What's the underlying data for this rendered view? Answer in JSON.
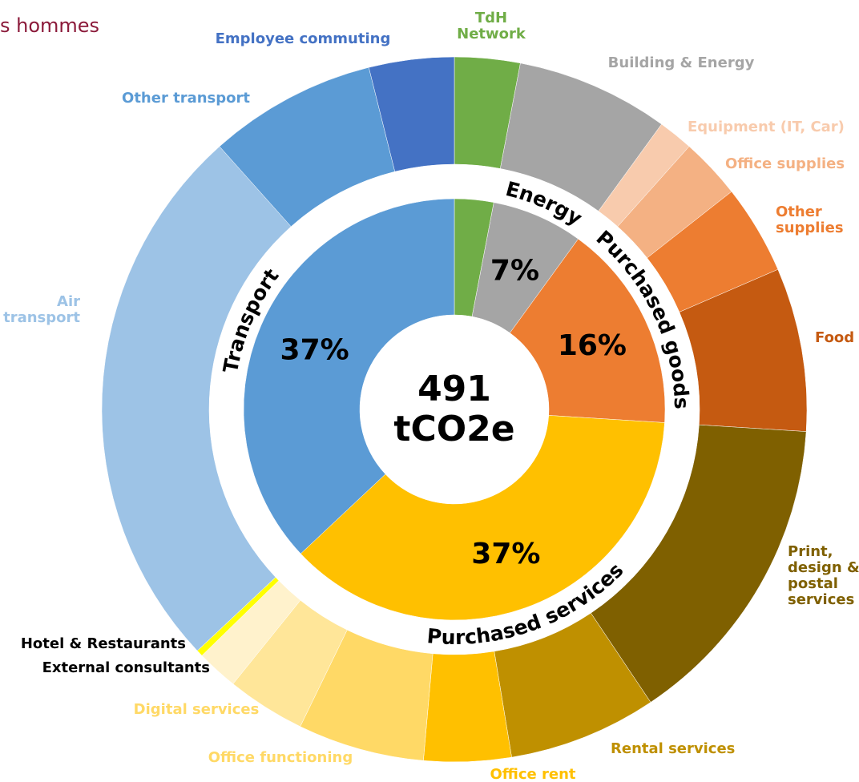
{
  "chart_data": {
    "type": "sunburst",
    "title": "s hommes",
    "center_label": [
      "491",
      "tCO2e"
    ],
    "inner": {
      "categories": [
        null,
        "Energy",
        "Purchased goods",
        "Purchased services",
        "Transport"
      ],
      "values": [
        3,
        7,
        16,
        37,
        37
      ],
      "value_labels": [
        null,
        "7%",
        "16%",
        "37%",
        "37%"
      ],
      "colors": [
        "#70ad47",
        "#a5a5a5",
        "#ed7d31",
        "#ffc000",
        "#5b9bd5"
      ]
    },
    "outer": {
      "categories": [
        "TdH\nNetwork",
        "Building & Energy",
        "Equipment (IT, Car)",
        "Office supplies",
        "Other\nsupplies",
        "Food",
        "Print,\ndesign &\npostal\nservices",
        "Rental services",
        "Office rent",
        "Office functioning",
        "Digital services",
        "External consultants",
        "Hotel & Restaurants",
        "Air\ntransport",
        "Other transport",
        "Employee commuting"
      ],
      "values": [
        3,
        7,
        1.6,
        2.8,
        4.1,
        7.5,
        14.6,
        6.8,
        4,
        5.8,
        3.6,
        1.9,
        0.3,
        25.4,
        7.7,
        3.9
      ],
      "colors": [
        "#70ad47",
        "#a5a5a5",
        "#f8cbad",
        "#f4b183",
        "#ed7d31",
        "#c55a11",
        "#7f6000",
        "#bf9000",
        "#ffc000",
        "#ffd966",
        "#ffe699",
        "#fff2cc",
        "#ffff00",
        "#9dc3e6",
        "#5b9bd5",
        "#4472c4"
      ],
      "label_colors": [
        "#70ad47",
        "#a5a5a5",
        "#f8cbad",
        "#f4b183",
        "#ed7d31",
        "#c55a11",
        "#7f6000",
        "#bf9000",
        "#ffc000",
        "#ffd966",
        "#ffd966",
        "#000000",
        "#000000",
        "#9dc3e6",
        "#5b9bd5",
        "#4472c4"
      ]
    }
  }
}
